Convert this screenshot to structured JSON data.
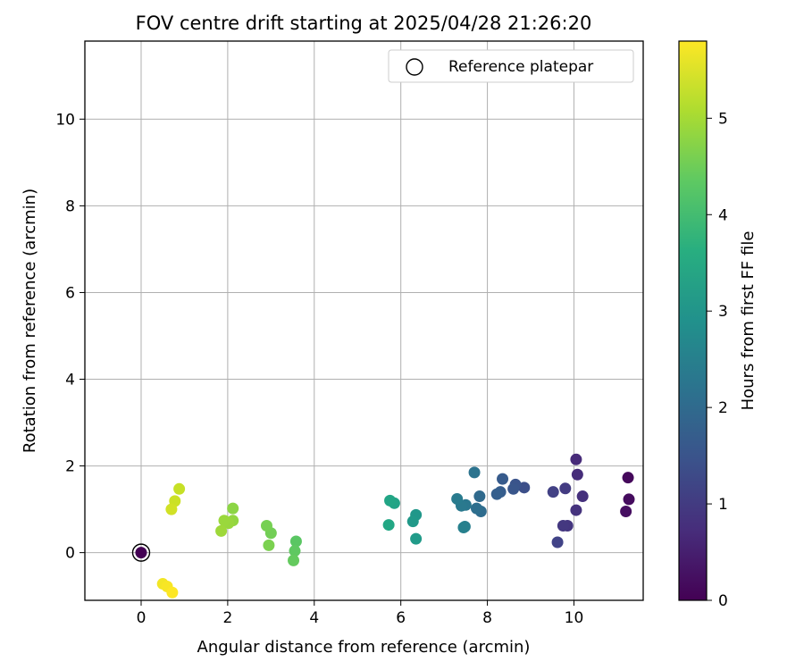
{
  "chart_data": {
    "type": "scatter",
    "title": "FOV centre drift starting at 2025/04/28 21:26:20",
    "xlabel": "Angular distance from reference (arcmin)",
    "ylabel": "Rotation from reference (arcmin)",
    "xlim": [
      -1.3,
      11.6
    ],
    "ylim": [
      -1.1,
      11.8
    ],
    "x_ticks": [
      0,
      2,
      4,
      6,
      8,
      10
    ],
    "y_ticks": [
      0,
      2,
      4,
      6,
      8,
      10
    ],
    "grid": true,
    "legend": {
      "placement": "top-right",
      "entries": [
        "Reference platepar"
      ]
    },
    "reference_point": {
      "x": 0,
      "y": 0,
      "hours": 0
    },
    "colorbar": {
      "label": "Hours from first FF file",
      "range": [
        0,
        5.8
      ],
      "ticks": [
        0,
        1,
        2,
        3,
        4,
        5
      ],
      "colormap": "viridis"
    },
    "points": [
      {
        "x": 11.25,
        "y": 1.73,
        "h": 0.12
      },
      {
        "x": 11.27,
        "y": 1.23,
        "h": 0.18
      },
      {
        "x": 11.2,
        "y": 0.95,
        "h": 0.22
      },
      {
        "x": 10.05,
        "y": 2.15,
        "h": 0.7
      },
      {
        "x": 10.08,
        "y": 1.8,
        "h": 0.75
      },
      {
        "x": 10.2,
        "y": 1.3,
        "h": 0.8
      },
      {
        "x": 10.05,
        "y": 0.98,
        "h": 0.85
      },
      {
        "x": 9.85,
        "y": 0.62,
        "h": 0.9
      },
      {
        "x": 9.75,
        "y": 0.62,
        "h": 0.95
      },
      {
        "x": 9.8,
        "y": 1.48,
        "h": 1.0
      },
      {
        "x": 9.52,
        "y": 1.4,
        "h": 1.1
      },
      {
        "x": 9.62,
        "y": 0.24,
        "h": 1.15
      },
      {
        "x": 8.85,
        "y": 1.5,
        "h": 1.4
      },
      {
        "x": 8.65,
        "y": 1.57,
        "h": 1.5
      },
      {
        "x": 8.6,
        "y": 1.47,
        "h": 1.55
      },
      {
        "x": 8.35,
        "y": 1.7,
        "h": 1.65
      },
      {
        "x": 8.3,
        "y": 1.4,
        "h": 1.7
      },
      {
        "x": 8.22,
        "y": 1.35,
        "h": 1.75
      },
      {
        "x": 7.82,
        "y": 1.3,
        "h": 2.0
      },
      {
        "x": 7.85,
        "y": 0.95,
        "h": 2.05
      },
      {
        "x": 7.75,
        "y": 1.02,
        "h": 2.1
      },
      {
        "x": 7.7,
        "y": 1.85,
        "h": 2.2
      },
      {
        "x": 7.5,
        "y": 1.1,
        "h": 2.3
      },
      {
        "x": 7.4,
        "y": 1.08,
        "h": 2.35
      },
      {
        "x": 7.3,
        "y": 1.24,
        "h": 2.4
      },
      {
        "x": 7.48,
        "y": 0.6,
        "h": 2.45
      },
      {
        "x": 7.45,
        "y": 0.58,
        "h": 2.5
      },
      {
        "x": 6.35,
        "y": 0.87,
        "h": 3.05
      },
      {
        "x": 6.28,
        "y": 0.72,
        "h": 3.1
      },
      {
        "x": 6.35,
        "y": 0.32,
        "h": 3.15
      },
      {
        "x": 5.85,
        "y": 1.14,
        "h": 3.35
      },
      {
        "x": 5.75,
        "y": 1.2,
        "h": 3.4
      },
      {
        "x": 5.72,
        "y": 0.64,
        "h": 3.45
      },
      {
        "x": 3.58,
        "y": 0.26,
        "h": 4.3
      },
      {
        "x": 3.55,
        "y": 0.04,
        "h": 4.35
      },
      {
        "x": 3.52,
        "y": -0.18,
        "h": 4.4
      },
      {
        "x": 3.0,
        "y": 0.45,
        "h": 4.55
      },
      {
        "x": 2.9,
        "y": 0.62,
        "h": 4.6
      },
      {
        "x": 2.95,
        "y": 0.17,
        "h": 4.65
      },
      {
        "x": 2.12,
        "y": 1.02,
        "h": 4.8
      },
      {
        "x": 2.12,
        "y": 0.74,
        "h": 4.85
      },
      {
        "x": 2.02,
        "y": 0.68,
        "h": 4.9
      },
      {
        "x": 1.92,
        "y": 0.74,
        "h": 4.92
      },
      {
        "x": 1.85,
        "y": 0.5,
        "h": 4.95
      },
      {
        "x": 0.88,
        "y": 1.47,
        "h": 5.3
      },
      {
        "x": 0.78,
        "y": 1.19,
        "h": 5.35
      },
      {
        "x": 0.7,
        "y": 1.0,
        "h": 5.4
      },
      {
        "x": 0.5,
        "y": -0.72,
        "h": 5.7
      },
      {
        "x": 0.6,
        "y": -0.78,
        "h": 5.75
      },
      {
        "x": 0.72,
        "y": -0.92,
        "h": 5.8
      },
      {
        "x": 0.0,
        "y": 0.0,
        "h": 0.0
      }
    ]
  }
}
